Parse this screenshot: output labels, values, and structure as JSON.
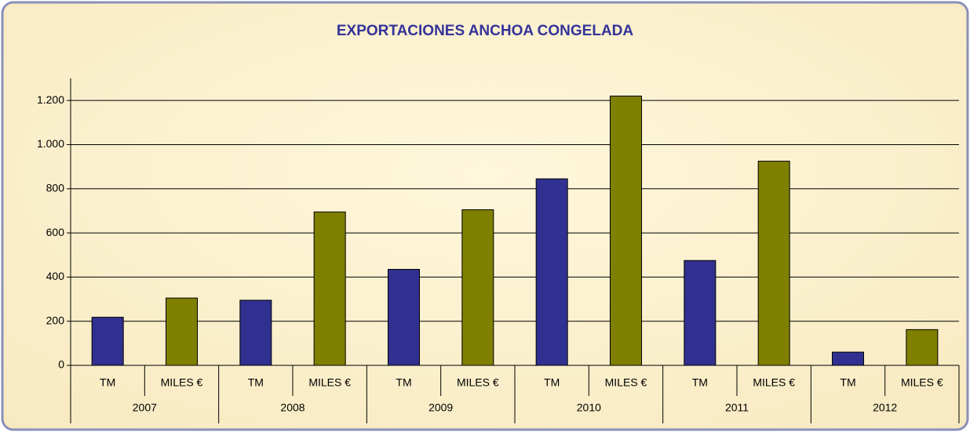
{
  "chart_data": {
    "type": "bar",
    "title": "EXPORTACIONES ANCHOA CONGELADA",
    "categories": [
      "TM",
      "MILES €",
      "TM",
      "MILES €",
      "TM",
      "MILES €",
      "TM",
      "MILES €",
      "TM",
      "MILES €",
      "TM",
      "MILES €"
    ],
    "groups": [
      "2007",
      "2008",
      "2009",
      "2010",
      "2011",
      "2012"
    ],
    "values": [
      218,
      305,
      295,
      695,
      435,
      705,
      845,
      1220,
      475,
      925,
      60,
      162
    ],
    "colors": [
      "#303090",
      "#7f7f00"
    ],
    "ylim": [
      0,
      1300
    ],
    "yticks": [
      0,
      200,
      400,
      600,
      800,
      {
        "value": 1000,
        "label": "1.000"
      },
      {
        "value": 1200,
        "label": "1.200"
      }
    ],
    "grid": true
  }
}
